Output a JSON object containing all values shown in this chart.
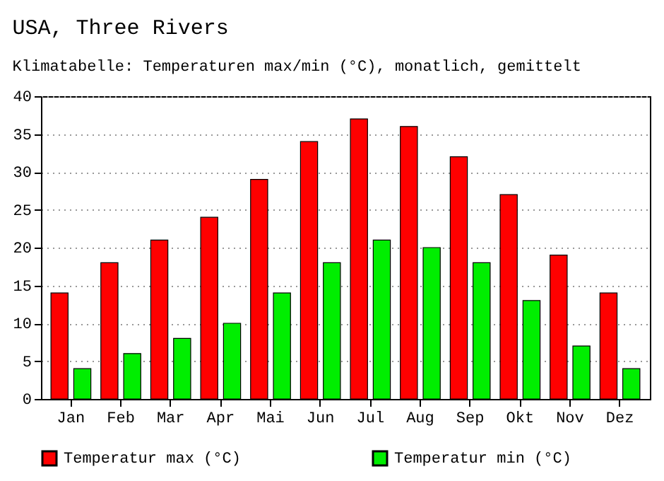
{
  "chart_data": {
    "type": "bar",
    "title": "USA, Three Rivers",
    "subtitle": "Klimatabelle: Temperaturen max/min (°C), monatlich, gemittelt",
    "categories": [
      "Jan",
      "Feb",
      "Mar",
      "Apr",
      "Mai",
      "Jun",
      "Jul",
      "Aug",
      "Sep",
      "Okt",
      "Nov",
      "Dez"
    ],
    "series": [
      {
        "name": "Temperatur max (°C)",
        "color": "#ff0000",
        "values": [
          14,
          18,
          21,
          24,
          29,
          34,
          37,
          36,
          32,
          27,
          19,
          14
        ]
      },
      {
        "name": "Temperatur min (°C)",
        "color": "#00ee00",
        "values": [
          4,
          6,
          8,
          10,
          14,
          18,
          21,
          20,
          18,
          13,
          7,
          4
        ]
      }
    ],
    "ylim": [
      0,
      40
    ],
    "yticks": [
      0,
      5,
      10,
      15,
      20,
      25,
      30,
      35,
      40
    ],
    "grid": "y",
    "legend": "bottom"
  }
}
